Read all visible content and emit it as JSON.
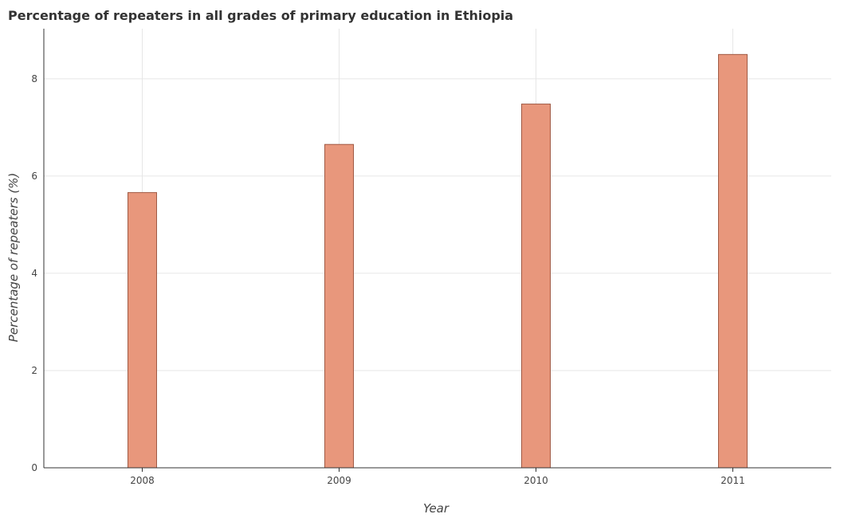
{
  "chart_data": {
    "type": "bar",
    "title": "Percentage of repeaters in all grades of primary education in Ethiopia",
    "xlabel": "Year",
    "ylabel": "Percentage of repeaters (%)",
    "categories": [
      "2008",
      "2009",
      "2010",
      "2011"
    ],
    "values": [
      5.66,
      6.65,
      7.48,
      8.5
    ],
    "ylim": [
      0,
      9.03
    ],
    "yticks": [
      0,
      2,
      4,
      6,
      8
    ],
    "grid": true,
    "colors": {
      "bar_fill": "#e8977c",
      "bar_edge": "#a05a44"
    }
  }
}
